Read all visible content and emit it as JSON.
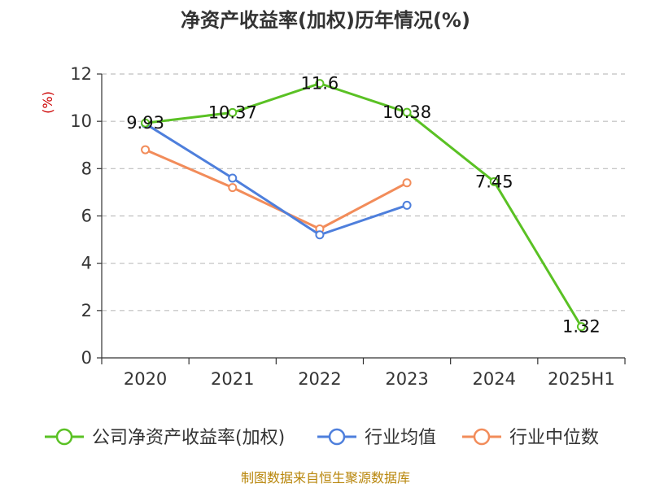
{
  "chart_data": {
    "type": "line",
    "title": "净资产收益率(加权)历年情况(%)",
    "ylabel": "(%)",
    "xlabel": "",
    "categories": [
      "2020",
      "2021",
      "2022",
      "2023",
      "2024",
      "2025H1"
    ],
    "ylim": [
      0,
      12
    ],
    "yticks": [
      0,
      2,
      4,
      6,
      8,
      10,
      12
    ],
    "grid": true,
    "legend_position": "bottom",
    "series": [
      {
        "name": "公司净资产收益率(加权)",
        "color": "#5ac124",
        "values": [
          9.93,
          10.37,
          11.6,
          10.38,
          7.45,
          1.32
        ],
        "data_labels": [
          "9.93",
          "10.37",
          "11.6",
          "10.38",
          "7.45",
          "1.32"
        ]
      },
      {
        "name": "行业均值",
        "color": "#4e7fdc",
        "values": [
          9.9,
          7.6,
          5.2,
          6.45,
          null,
          null
        ]
      },
      {
        "name": "行业中位数",
        "color": "#f28c5a",
        "values": [
          8.8,
          7.2,
          5.45,
          7.4,
          null,
          null
        ]
      }
    ],
    "source": "制图数据来自恒生聚源数据库"
  }
}
